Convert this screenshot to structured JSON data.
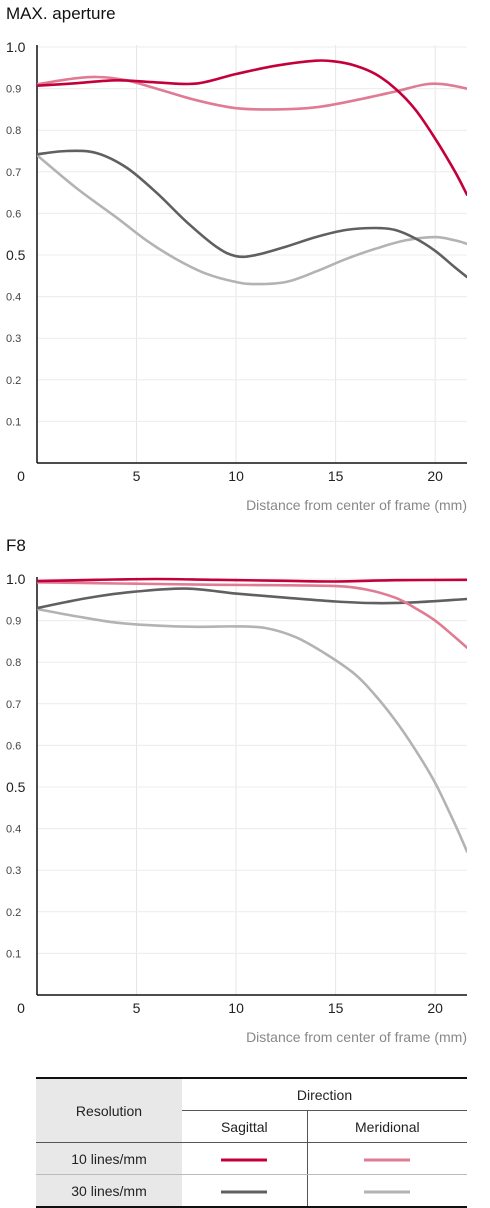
{
  "charts": [
    {
      "title": "MAX. aperture"
    },
    {
      "title": "F8"
    }
  ],
  "legend": {
    "resolution_header": "Resolution",
    "direction_header": "Direction",
    "sagittal": "Sagittal",
    "meridional": "Meridional",
    "rows": [
      {
        "label": "10 lines/mm",
        "sagittal_color": "#c4003c",
        "meridional_color": "#e07b94"
      },
      {
        "label": "30 lines/mm",
        "sagittal_color": "#606060",
        "meridional_color": "#b3b3b3"
      }
    ]
  },
  "chart_data": [
    {
      "type": "line",
      "title": "MAX. aperture",
      "xlabel": "Distance from center of frame (mm)",
      "ylabel": "",
      "xlim": [
        0,
        21.6
      ],
      "ylim": [
        0,
        1.0
      ],
      "x_ticks": [
        "0",
        "5",
        "10",
        "15",
        "20"
      ],
      "y_ticks": [
        "1.0",
        "0.9",
        "0.8",
        "0.7",
        "0.6",
        "0.5",
        "0.4",
        "0.3",
        "0.2",
        "0.1"
      ],
      "grid": true,
      "series": [
        {
          "color": "#c4003c",
          "points": [
            [
              0,
              0.907
            ],
            [
              2,
              0.913
            ],
            [
              4,
              0.92
            ],
            [
              6,
              0.915
            ],
            [
              8,
              0.912
            ],
            [
              10,
              0.935
            ],
            [
              12,
              0.955
            ],
            [
              14,
              0.967
            ],
            [
              15,
              0.965
            ],
            [
              16,
              0.955
            ],
            [
              17,
              0.935
            ],
            [
              18,
              0.9
            ],
            [
              19,
              0.85
            ],
            [
              20,
              0.78
            ],
            [
              21,
              0.7
            ],
            [
              21.6,
              0.645
            ]
          ]
        },
        {
          "color": "#e07b94",
          "points": [
            [
              0,
              0.91
            ],
            [
              1.5,
              0.922
            ],
            [
              3,
              0.928
            ],
            [
              4.5,
              0.92
            ],
            [
              6,
              0.9
            ],
            [
              8,
              0.872
            ],
            [
              10,
              0.853
            ],
            [
              12,
              0.85
            ],
            [
              14,
              0.855
            ],
            [
              16,
              0.872
            ],
            [
              18,
              0.893
            ],
            [
              19.5,
              0.91
            ],
            [
              20.5,
              0.91
            ],
            [
              21.6,
              0.9
            ]
          ]
        },
        {
          "color": "#606060",
          "points": [
            [
              0,
              0.742
            ],
            [
              1.5,
              0.75
            ],
            [
              3,
              0.745
            ],
            [
              4.5,
              0.71
            ],
            [
              6,
              0.65
            ],
            [
              7.5,
              0.58
            ],
            [
              9,
              0.52
            ],
            [
              10,
              0.497
            ],
            [
              11,
              0.5
            ],
            [
              12.5,
              0.52
            ],
            [
              14,
              0.543
            ],
            [
              15.5,
              0.56
            ],
            [
              17,
              0.565
            ],
            [
              18,
              0.56
            ],
            [
              19,
              0.54
            ],
            [
              20,
              0.51
            ],
            [
              21,
              0.47
            ],
            [
              21.6,
              0.447
            ]
          ]
        },
        {
          "color": "#b3b3b3",
          "points": [
            [
              0,
              0.74
            ],
            [
              2,
              0.66
            ],
            [
              4,
              0.59
            ],
            [
              5.5,
              0.535
            ],
            [
              7,
              0.49
            ],
            [
              8.5,
              0.455
            ],
            [
              10,
              0.435
            ],
            [
              11,
              0.43
            ],
            [
              12.5,
              0.435
            ],
            [
              14,
              0.46
            ],
            [
              15.5,
              0.49
            ],
            [
              17,
              0.515
            ],
            [
              18.5,
              0.535
            ],
            [
              20,
              0.543
            ],
            [
              21,
              0.535
            ],
            [
              21.6,
              0.527
            ]
          ]
        }
      ]
    },
    {
      "type": "line",
      "title": "F8",
      "xlabel": "Distance from center of frame (mm)",
      "ylabel": "",
      "xlim": [
        0,
        21.6
      ],
      "ylim": [
        0,
        1.0
      ],
      "x_ticks": [
        "0",
        "5",
        "10",
        "15",
        "20"
      ],
      "y_ticks": [
        "1.0",
        "0.9",
        "0.8",
        "0.7",
        "0.6",
        "0.5",
        "0.4",
        "0.3",
        "0.2",
        "0.1"
      ],
      "grid": true,
      "series": [
        {
          "color": "#c4003c",
          "points": [
            [
              0,
              0.995
            ],
            [
              3,
              0.998
            ],
            [
              6,
              1.0
            ],
            [
              9,
              0.998
            ],
            [
              12,
              0.996
            ],
            [
              15,
              0.994
            ],
            [
              18,
              0.997
            ],
            [
              21.6,
              0.998
            ]
          ]
        },
        {
          "color": "#e07b94",
          "points": [
            [
              0,
              0.992
            ],
            [
              3,
              0.99
            ],
            [
              6,
              0.988
            ],
            [
              9,
              0.986
            ],
            [
              12,
              0.985
            ],
            [
              15,
              0.983
            ],
            [
              16.5,
              0.975
            ],
            [
              18,
              0.955
            ],
            [
              19,
              0.93
            ],
            [
              20,
              0.9
            ],
            [
              21,
              0.86
            ],
            [
              21.6,
              0.835
            ]
          ]
        },
        {
          "color": "#606060",
          "points": [
            [
              0,
              0.93
            ],
            [
              1.5,
              0.945
            ],
            [
              3,
              0.958
            ],
            [
              5,
              0.97
            ],
            [
              7.5,
              0.977
            ],
            [
              10,
              0.965
            ],
            [
              12.5,
              0.955
            ],
            [
              15,
              0.946
            ],
            [
              17,
              0.942
            ],
            [
              19,
              0.944
            ],
            [
              21.6,
              0.952
            ]
          ]
        },
        {
          "color": "#b3b3b3",
          "points": [
            [
              0,
              0.928
            ],
            [
              2,
              0.91
            ],
            [
              4,
              0.895
            ],
            [
              6,
              0.888
            ],
            [
              8,
              0.885
            ],
            [
              10,
              0.886
            ],
            [
              11.5,
              0.882
            ],
            [
              13,
              0.86
            ],
            [
              14.5,
              0.82
            ],
            [
              16,
              0.77
            ],
            [
              17,
              0.72
            ],
            [
              18,
              0.66
            ],
            [
              19,
              0.59
            ],
            [
              20,
              0.51
            ],
            [
              21,
              0.41
            ],
            [
              21.6,
              0.345
            ]
          ]
        }
      ]
    }
  ]
}
